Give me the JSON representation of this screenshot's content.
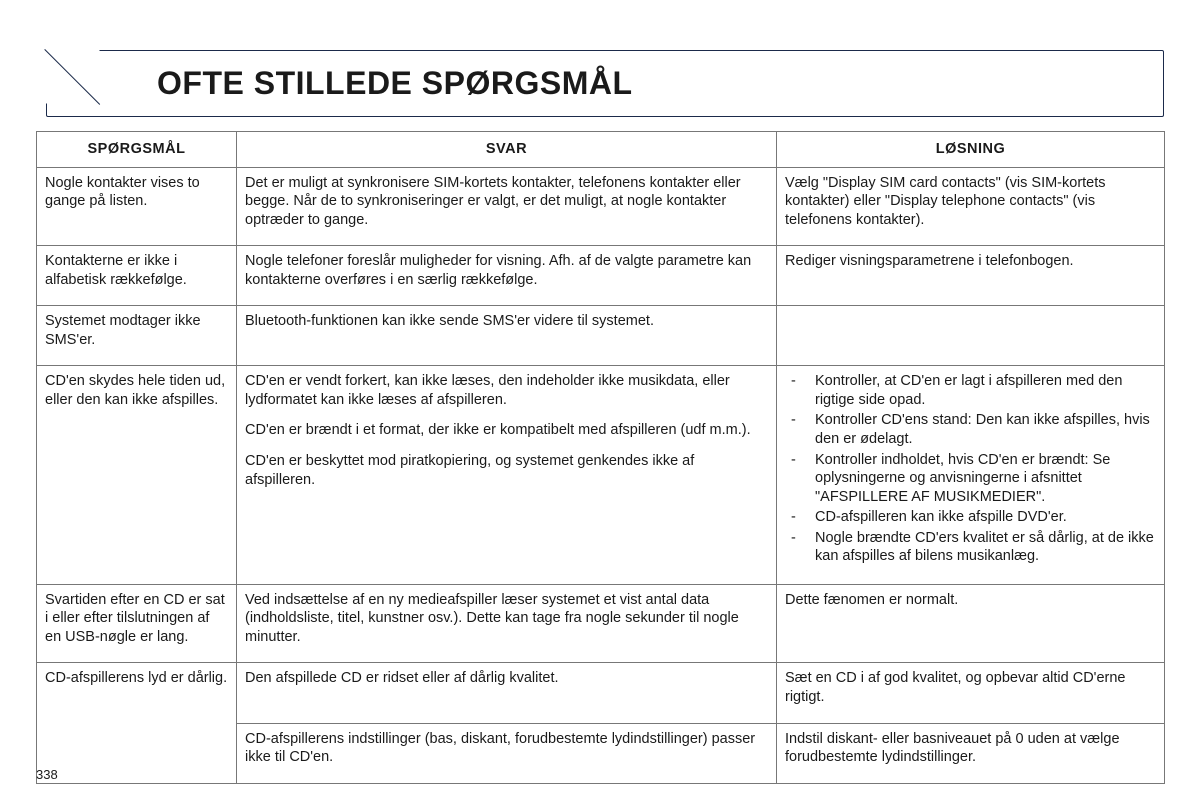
{
  "page": {
    "title": "OFTE STILLEDE SPØRGSMÅL",
    "number": "338"
  },
  "table": {
    "headers": {
      "q": "SPØRGSMÅL",
      "a": "SVAR",
      "s": "LØSNING"
    },
    "rows": [
      {
        "q": "Nogle kontakter vises to gange på listen.",
        "a": [
          "Det er muligt at synkronisere SIM-kortets kontakter, telefonens kontakter eller begge. Når de to synkroniseringer er valgt, er det muligt, at nogle kontakter optræder to gange."
        ],
        "s": {
          "paras": [
            "Vælg \"Display SIM card contacts\" (vis SIM-kortets kontakter) eller \"Display telephone contacts\" (vis telefonens kontakter)."
          ]
        }
      },
      {
        "q": "Kontakterne er ikke i alfabetisk rækkefølge.",
        "a": [
          "Nogle telefoner foreslår muligheder for visning. Afh. af de valgte parametre kan kontakterne overføres i en særlig rækkefølge."
        ],
        "s": {
          "paras": [
            "Rediger visningsparametrene i telefonbogen."
          ]
        }
      },
      {
        "q": "Systemet modtager ikke SMS'er.",
        "a": [
          "Bluetooth-funktionen kan ikke sende SMS'er videre til systemet."
        ],
        "s": {
          "paras": []
        }
      },
      {
        "q": "CD'en skydes hele tiden ud, eller den kan ikke afspilles.",
        "a": [
          "CD'en er vendt forkert, kan ikke læses, den indeholder ikke musikdata, eller lydformatet kan ikke læses af afspilleren.",
          "CD'en er brændt i et format, der ikke er kompatibelt med afspilleren (udf m.m.).",
          "CD'en er beskyttet mod piratkopiering, og systemet genkendes ikke af afspilleren."
        ],
        "s": {
          "list": [
            "Kontroller, at CD'en er lagt i afspilleren med den rigtige side opad.",
            "Kontroller CD'ens stand: Den kan ikke afspilles, hvis den er ødelagt.",
            "Kontroller indholdet, hvis CD'en er brændt: Se oplysningerne og anvisningerne i afsnittet \"AFSPILLERE AF MUSIKMEDIER\".",
            "CD-afspilleren kan ikke afspille DVD'er.",
            "Nogle brændte CD'ers kvalitet er så dårlig, at de ikke kan afspilles af bilens musikanlæg."
          ]
        }
      },
      {
        "q": "Svartiden efter en CD er sat i eller efter tilslutningen af en USB-nøgle er lang.",
        "a": [
          "Ved indsættelse af en ny medieafspiller læser systemet et vist antal data (indholdsliste, titel, kunstner osv.). Dette kan tage fra nogle sekunder til nogle minutter."
        ],
        "s": {
          "paras": [
            "Dette fænomen er normalt."
          ]
        }
      },
      {
        "q": "CD-afspillerens lyd er dårlig.",
        "q_rowspan": 2,
        "a": [
          "Den afspillede CD er ridset eller af dårlig kvalitet."
        ],
        "s": {
          "paras": [
            "Sæt en CD i af god kvalitet, og opbevar altid CD'erne rigtigt."
          ]
        }
      },
      {
        "q_skip": true,
        "a": [
          "CD-afspillerens indstillinger (bas, diskant, forudbestemte lydindstillinger) passer ikke til CD'en."
        ],
        "s": {
          "paras": [
            "Indstil diskant- eller basniveauet på 0 uden at vælge forudbestemte lydindstillinger."
          ]
        }
      }
    ]
  }
}
